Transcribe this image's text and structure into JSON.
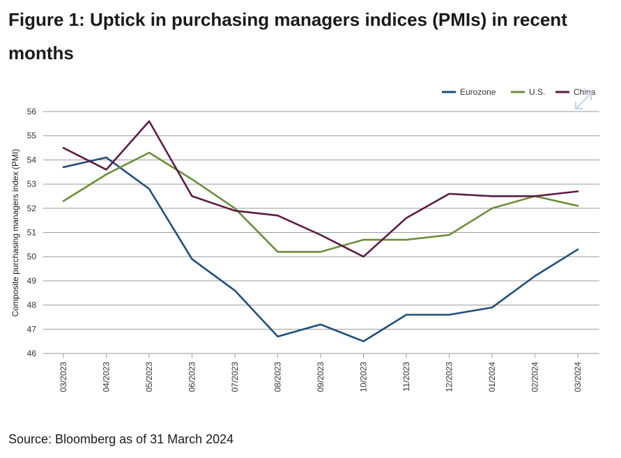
{
  "figure": {
    "title": "Figure 1: Uptick in purchasing managers indices (PMIs) in recent months",
    "source": "Source: Bloomberg as of 31 March 2024"
  },
  "chart_data": {
    "type": "line",
    "title": "Figure 1: Uptick in purchasing managers indices (PMIs) in recent months",
    "xlabel": "",
    "ylabel": "Composite purchasing managers index (PMI)",
    "x": [
      "03/2023",
      "04/2023",
      "05/2023",
      "06/2023",
      "07/2023",
      "08/2023",
      "09/2023",
      "10/2023",
      "11/2023",
      "12/2023",
      "01/2024",
      "02/2024",
      "03/2024"
    ],
    "ylim": [
      46,
      56
    ],
    "yticks": [
      46,
      47,
      48,
      49,
      50,
      51,
      52,
      53,
      54,
      55,
      56
    ],
    "grid": "horizontal",
    "legend_position": "top-right",
    "series": [
      {
        "name": "Eurozone",
        "color": "#1f4e79",
        "values": [
          53.7,
          54.1,
          52.8,
          49.9,
          48.6,
          46.7,
          47.2,
          46.5,
          47.6,
          47.6,
          47.9,
          49.2,
          50.3
        ]
      },
      {
        "name": "U.S.",
        "color": "#6b8e3a",
        "values": [
          52.3,
          53.4,
          54.3,
          53.2,
          52.0,
          50.2,
          50.2,
          50.7,
          50.7,
          50.9,
          52.0,
          52.5,
          52.1
        ]
      },
      {
        "name": "China",
        "color": "#5c1a44",
        "values": [
          54.5,
          53.6,
          55.6,
          52.5,
          51.9,
          51.7,
          50.9,
          50.0,
          51.6,
          52.6,
          52.5,
          52.5,
          52.7
        ]
      }
    ]
  },
  "icons": {
    "expand": "expand-arrows-icon"
  }
}
